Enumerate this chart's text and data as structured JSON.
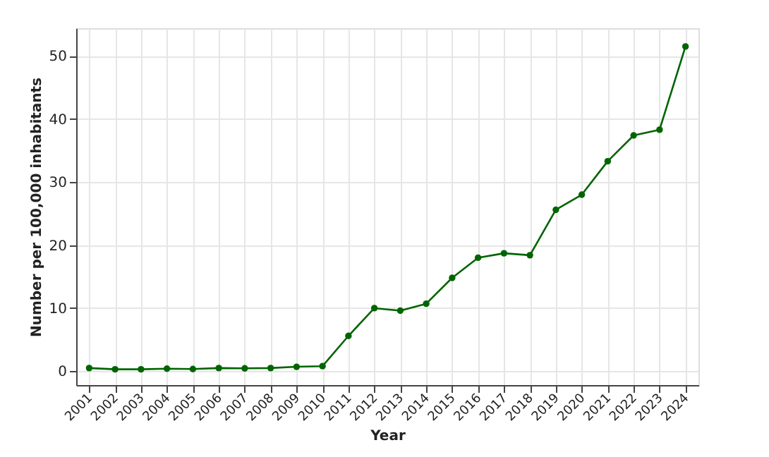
{
  "chart_data": {
    "type": "line",
    "xlabel": "Year",
    "ylabel": "Number per 100,000 inhabitants",
    "categories": [
      "2001",
      "2002",
      "2003",
      "2004",
      "2005",
      "2006",
      "2007",
      "2008",
      "2009",
      "2010",
      "2011",
      "2012",
      "2013",
      "2014",
      "2015",
      "2016",
      "2017",
      "2018",
      "2019",
      "2020",
      "2021",
      "2022",
      "2023",
      "2024"
    ],
    "series": [
      {
        "color": "#006400",
        "values": [
          0.5,
          0.3,
          0.3,
          0.4,
          0.35,
          0.5,
          0.45,
          0.5,
          0.7,
          0.8,
          5.6,
          10.0,
          9.6,
          10.7,
          14.8,
          18.0,
          18.7,
          18.4,
          25.6,
          28.0,
          33.3,
          37.4,
          38.3,
          51.5
        ]
      }
    ],
    "ylim": [
      -2.2,
      54.4
    ],
    "yticks": [
      0,
      10,
      20,
      30,
      40,
      50
    ],
    "grid": true,
    "marker": "circle",
    "line_style": "solid"
  }
}
